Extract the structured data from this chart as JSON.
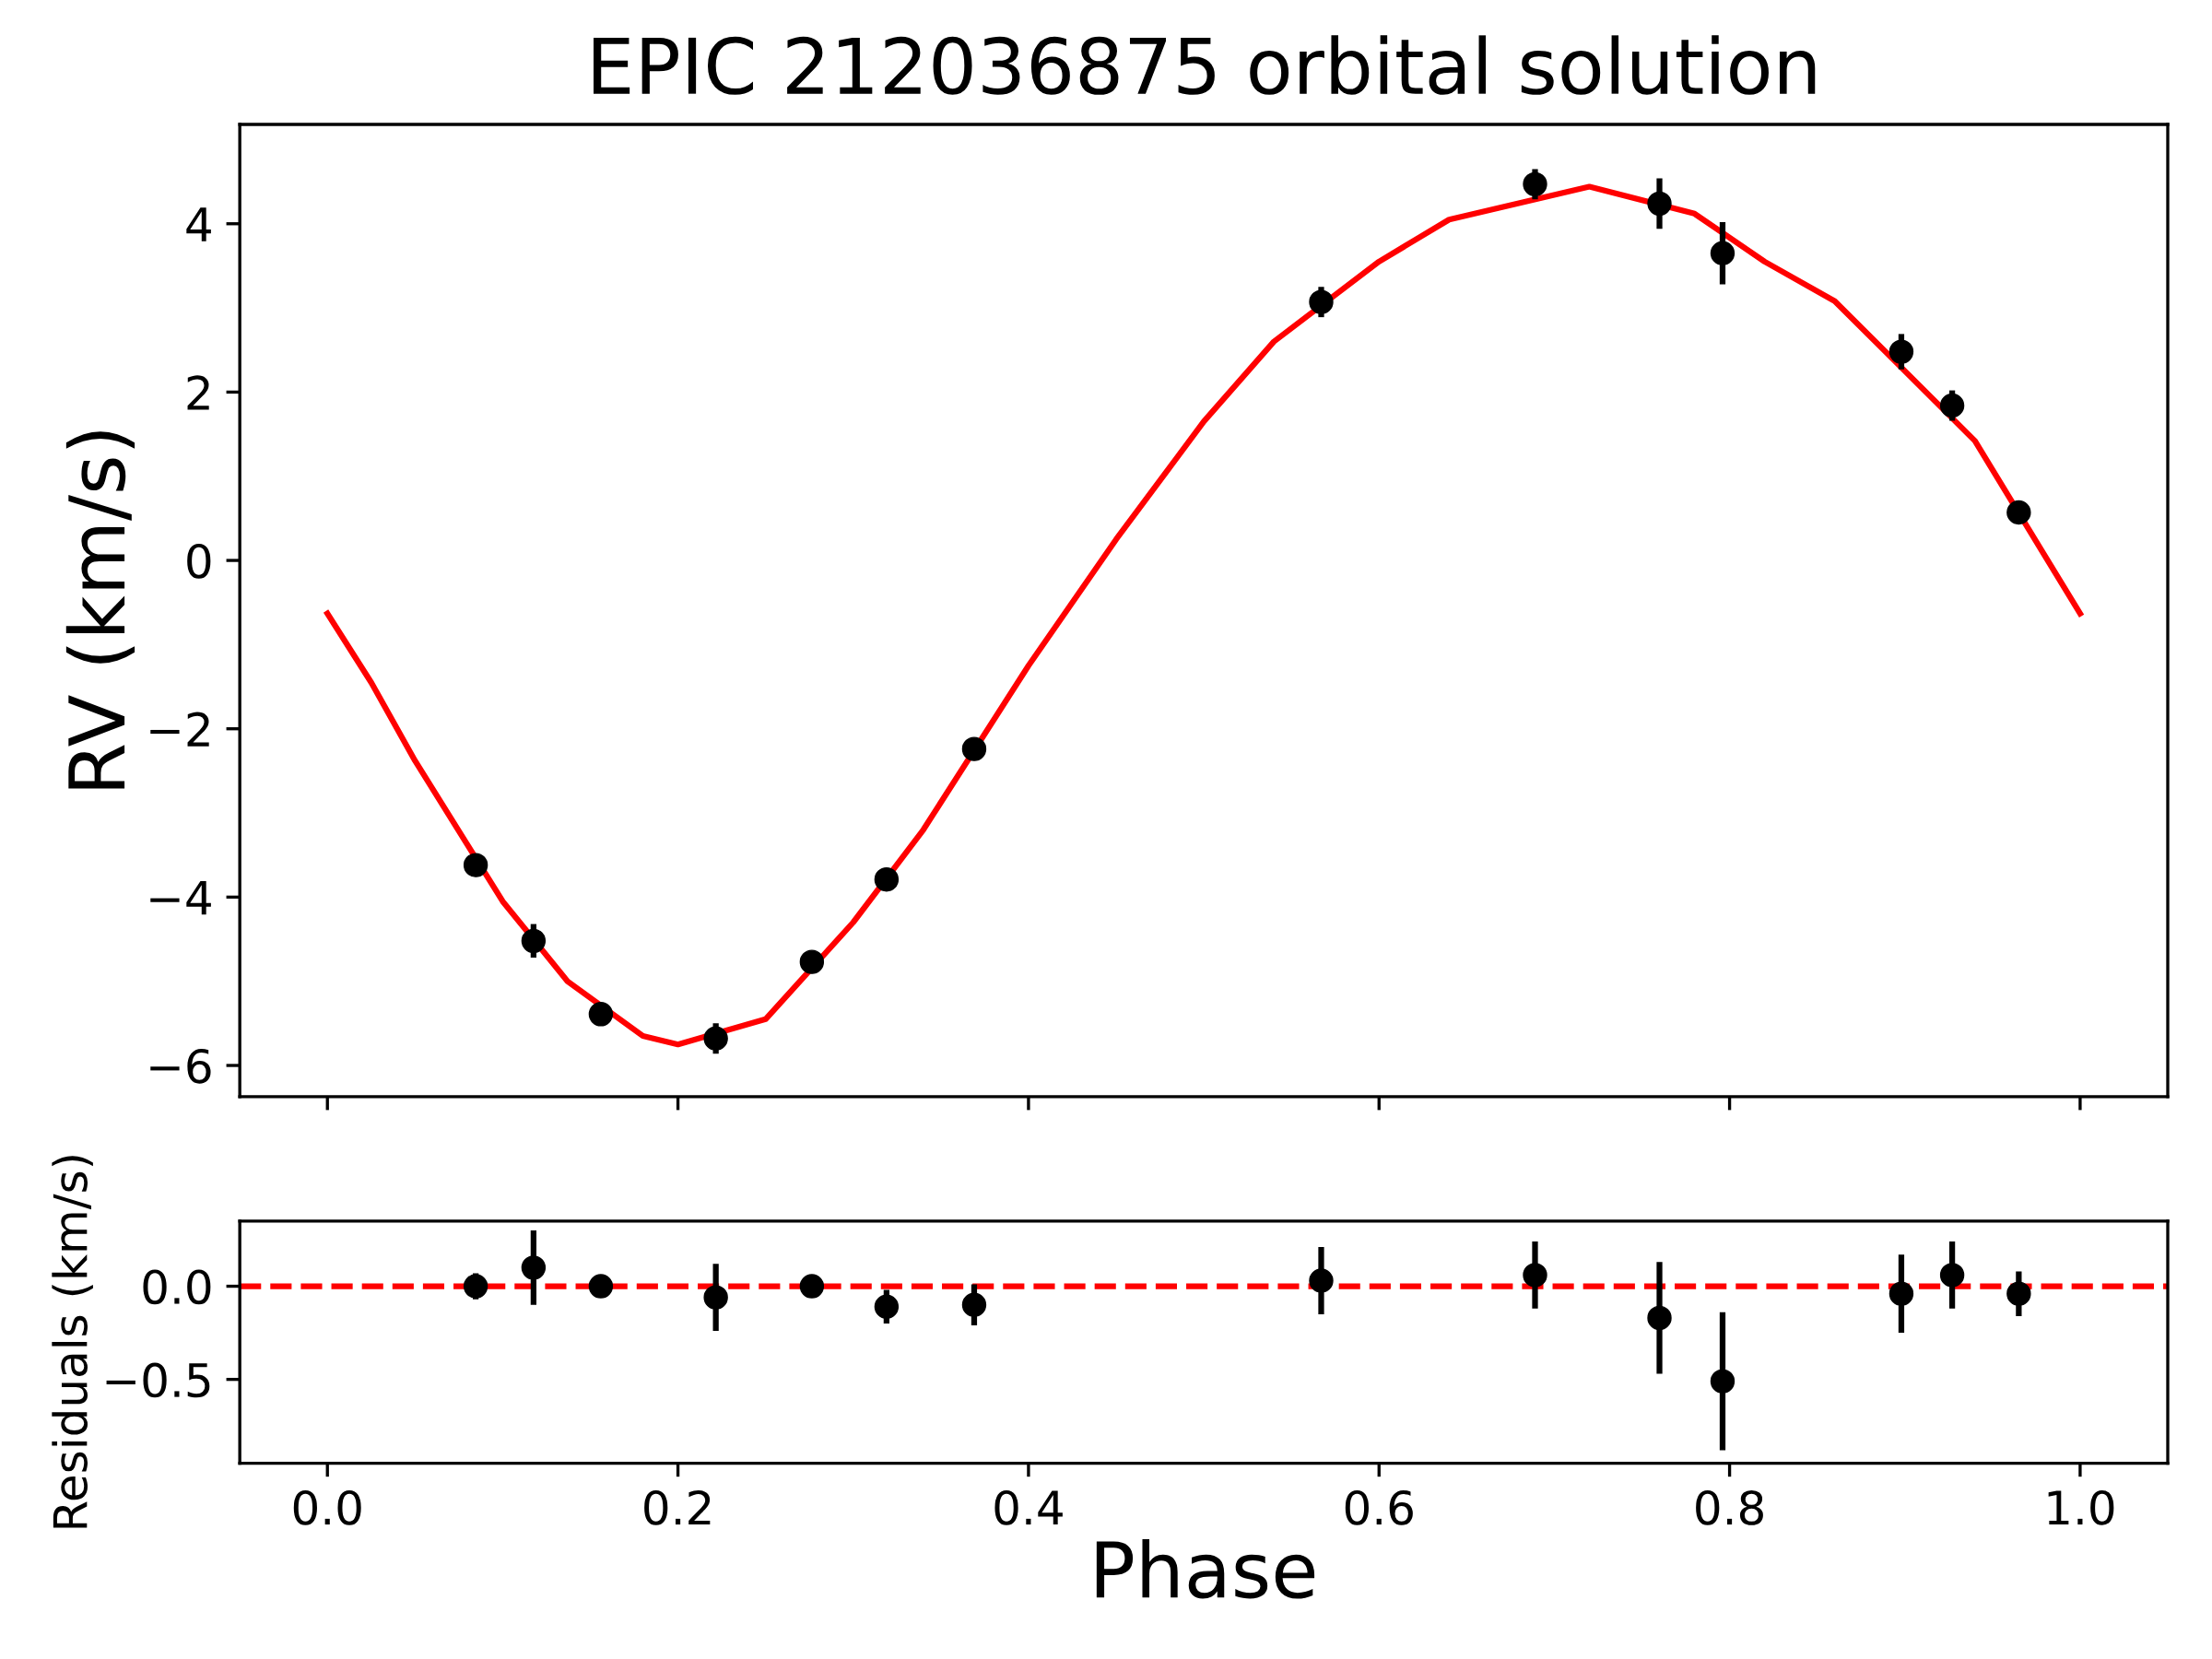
{
  "chart_data": [
    {
      "type": "scatter",
      "title": "EPIC 212036875 orbital solution",
      "ylabel": "RV (km/s)",
      "xlim": [
        -0.05,
        1.05
      ],
      "xticks": [
        0.0,
        0.2,
        0.4,
        0.6,
        0.8,
        1.0
      ],
      "ylim": [
        -6.37,
        5.18
      ],
      "yticks": [
        {
          "value": -6,
          "label": "−6"
        },
        {
          "value": -4,
          "label": "−4"
        },
        {
          "value": -2,
          "label": "−2"
        },
        0,
        2,
        4
      ],
      "tick_labels": "y",
      "grid": false,
      "legend": false,
      "series": [
        {
          "type": "line",
          "color": "#ff0000",
          "marker": "none",
          "line_style": "solid",
          "x": [
            0,
            0.025,
            0.05,
            0.1,
            0.137,
            0.18,
            0.2,
            0.25,
            0.3,
            0.34,
            0.4,
            0.45,
            0.5,
            0.54,
            0.6,
            0.64,
            0.72,
            0.78,
            0.82,
            0.86,
            0.94,
            0.98,
            1.0
          ],
          "values": [
            -0.63,
            -1.45,
            -2.38,
            -4.05,
            -5.0,
            -5.65,
            -5.75,
            -5.45,
            -4.3,
            -3.2,
            -1.25,
            0.25,
            1.65,
            2.6,
            3.55,
            4.05,
            4.44,
            4.12,
            3.55,
            3.08,
            1.42,
            0.05,
            -0.63
          ]
        },
        {
          "color": "#000000",
          "marker": "circle",
          "x": [
            0.0846,
            0.1176,
            0.156,
            0.2216,
            0.2764,
            0.319,
            0.369,
            0.567,
            0.689,
            0.76,
            0.796,
            0.898,
            0.927,
            0.965
          ],
          "values": [
            -3.62,
            -4.52,
            -5.39,
            -5.68,
            -4.77,
            -3.79,
            -2.24,
            3.07,
            4.47,
            4.24,
            3.65,
            2.48,
            1.84,
            0.57
          ],
          "errors": [
            0.07,
            0.2,
            0.06,
            0.18,
            0.03,
            0.09,
            0.11,
            0.18,
            0.18,
            0.3,
            0.37,
            0.21,
            0.18,
            0.12
          ]
        }
      ]
    },
    {
      "type": "scatter",
      "xlabel": "Phase",
      "ylabel": "Residuals (km/s)",
      "xlim": [
        -0.05,
        1.05
      ],
      "xticks": [
        {
          "value": 0,
          "label": "0.0"
        },
        0.2,
        0.4,
        0.6,
        0.8,
        {
          "value": 1,
          "label": "1.0"
        }
      ],
      "ylim": [
        -0.95,
        0.35
      ],
      "yticks": [
        {
          "value": -0.5,
          "label": "−0.5"
        },
        {
          "value": 0,
          "label": "0.0"
        }
      ],
      "grid": false,
      "legend": false,
      "ref_lines": [
        {
          "axis": "y",
          "value": 0,
          "label": null,
          "color": "#ff0000",
          "line_style": "dashed"
        }
      ],
      "series": [
        {
          "color": "#000000",
          "marker": "circle",
          "x": [
            0.0846,
            0.1176,
            0.156,
            0.2216,
            0.2764,
            0.319,
            0.369,
            0.567,
            0.689,
            0.76,
            0.796,
            0.898,
            0.927,
            0.965
          ],
          "values": [
            0.0,
            0.1,
            0.0,
            -0.06,
            0.0,
            -0.11,
            -0.1,
            0.03,
            0.06,
            -0.17,
            -0.51,
            -0.04,
            0.06,
            -0.04
          ],
          "errors": [
            0.07,
            0.2,
            0.06,
            0.18,
            0.03,
            0.09,
            0.11,
            0.18,
            0.18,
            0.3,
            0.37,
            0.21,
            0.18,
            0.12
          ]
        }
      ]
    }
  ]
}
